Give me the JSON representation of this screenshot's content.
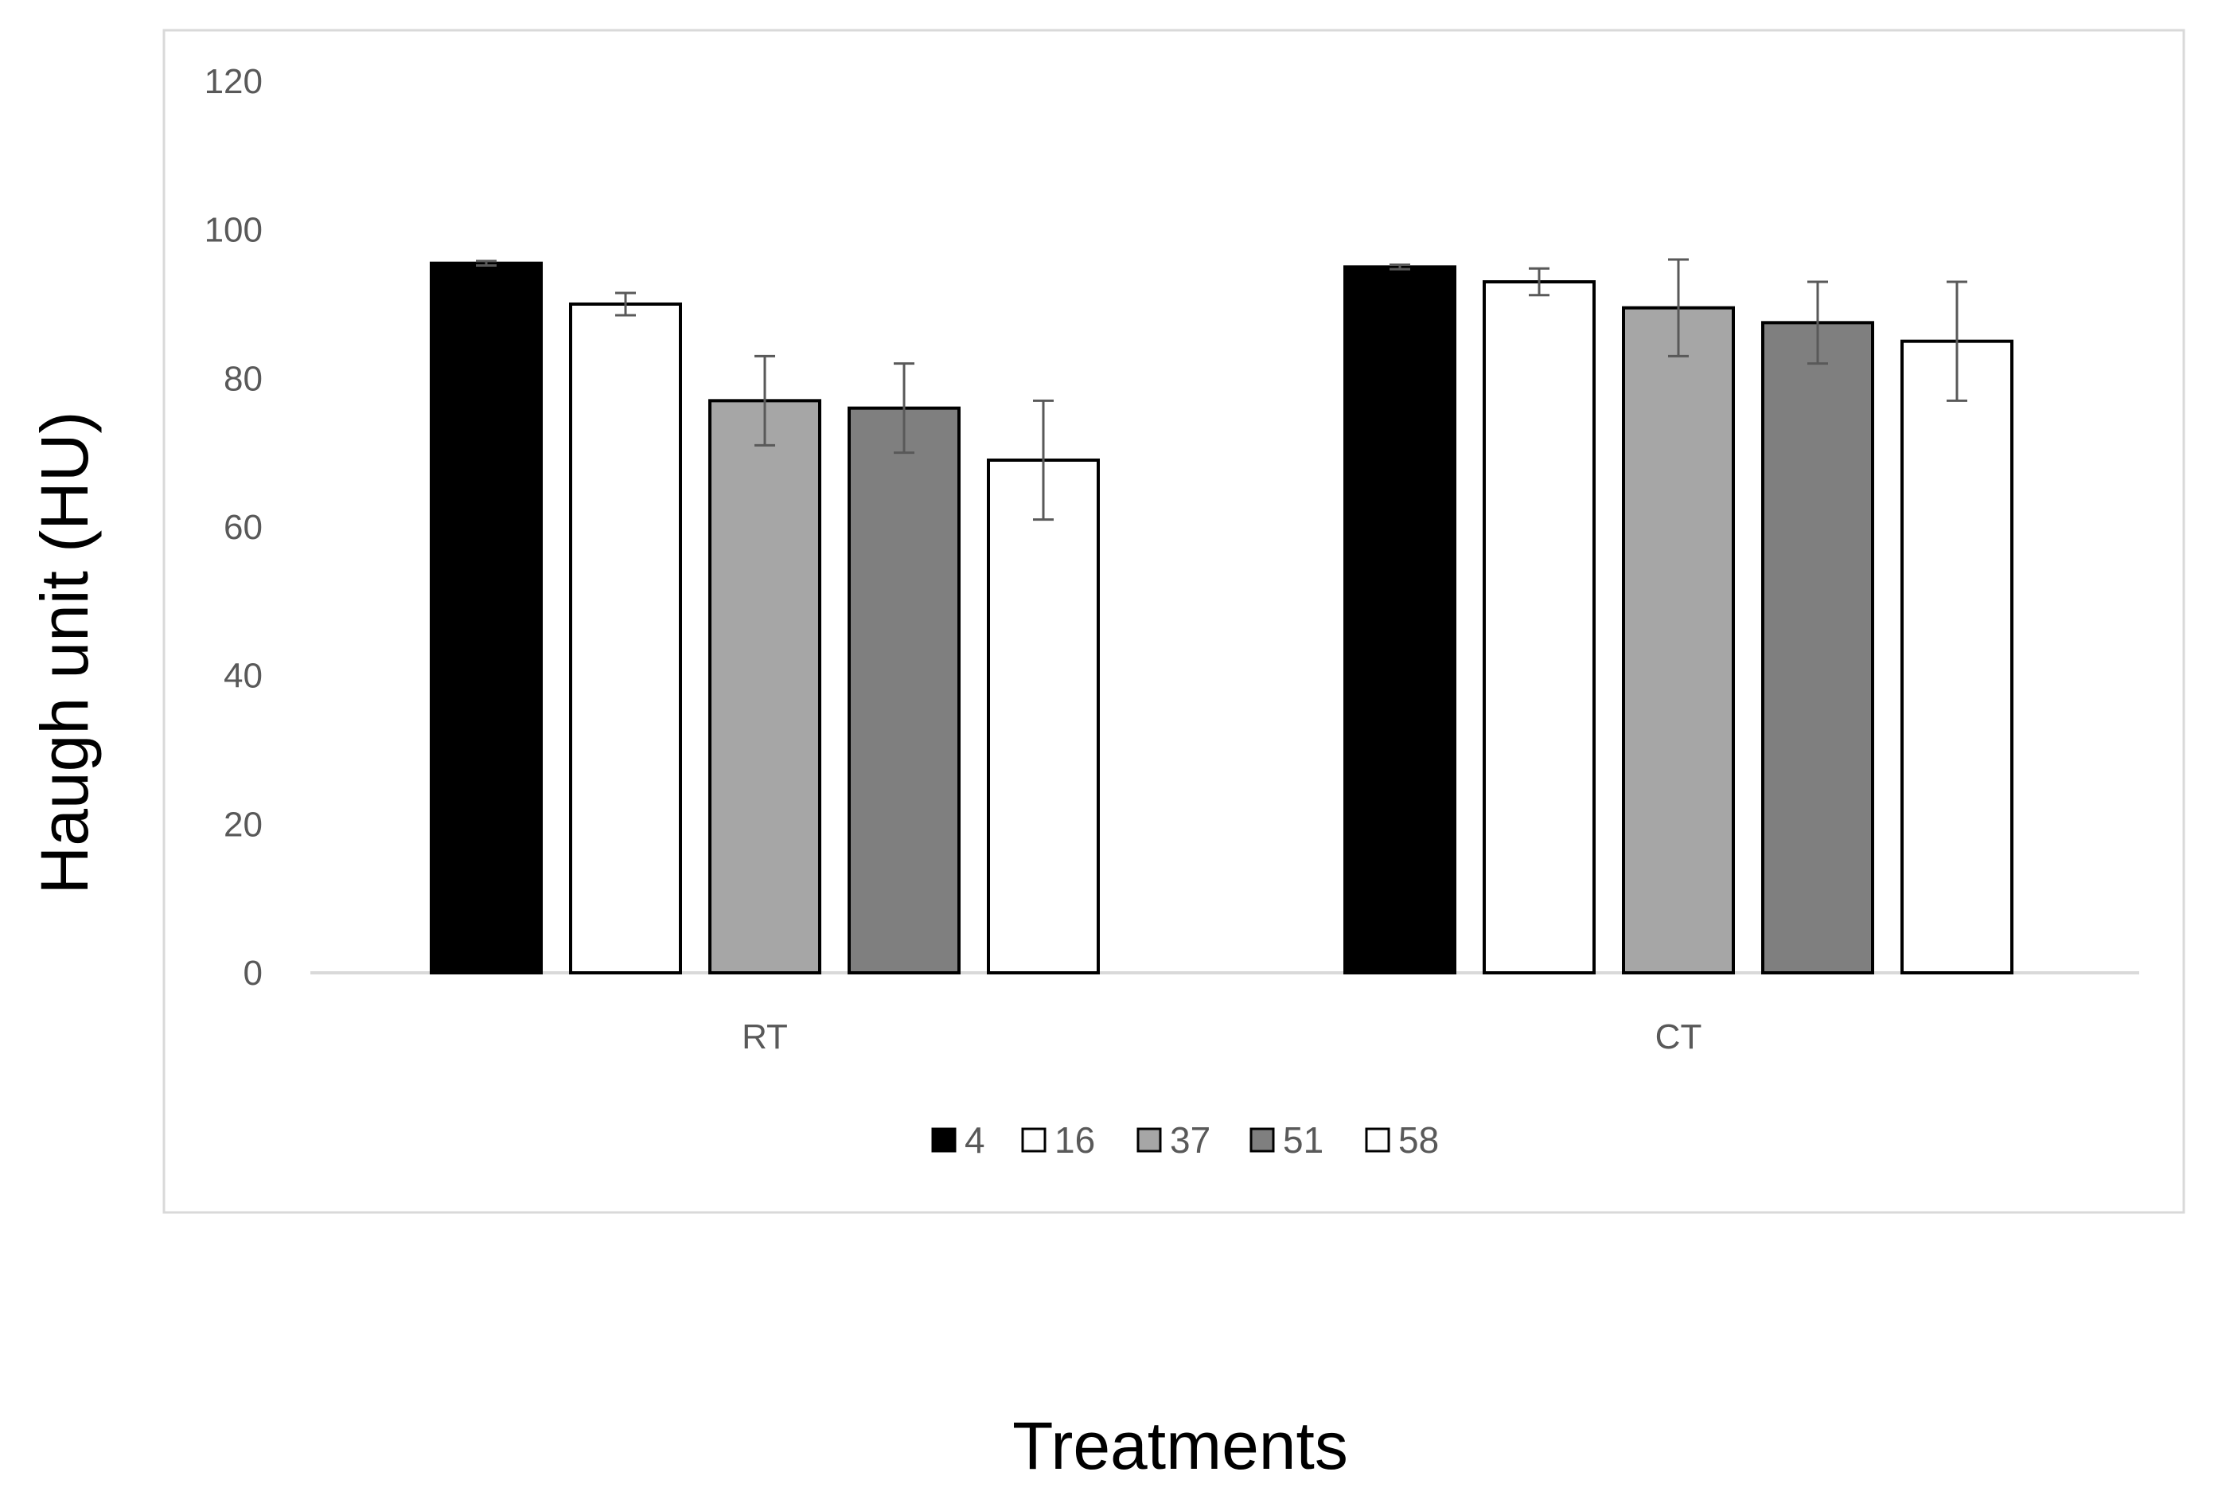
{
  "chart_data": {
    "type": "bar",
    "title": "",
    "xlabel": "Treatments",
    "ylabel": "Haugh unit (HU)",
    "ylim": [
      0,
      120
    ],
    "yticks": [
      0,
      20,
      40,
      60,
      80,
      100,
      120
    ],
    "grid": false,
    "legend_position": "bottom",
    "categories": [
      "RT",
      "CT"
    ],
    "series": [
      {
        "name": "4",
        "color": "#000000",
        "values": [
          95.5,
          95.0
        ],
        "errors": [
          0.3,
          0.3
        ]
      },
      {
        "name": "16",
        "color": "#ffffff",
        "values": [
          90.0,
          93.0
        ],
        "errors": [
          1.5,
          1.8
        ]
      },
      {
        "name": "37",
        "color": "#a6a6a6",
        "values": [
          77.0,
          89.5
        ],
        "errors": [
          6.0,
          6.5
        ]
      },
      {
        "name": "51",
        "color": "#7f7f7f",
        "values": [
          76.0,
          87.5
        ],
        "errors": [
          6.0,
          5.5
        ]
      },
      {
        "name": "58",
        "color": "#ffffff",
        "values": [
          69.0,
          85.0
        ],
        "errors": [
          8.0,
          8.0
        ]
      }
    ]
  }
}
